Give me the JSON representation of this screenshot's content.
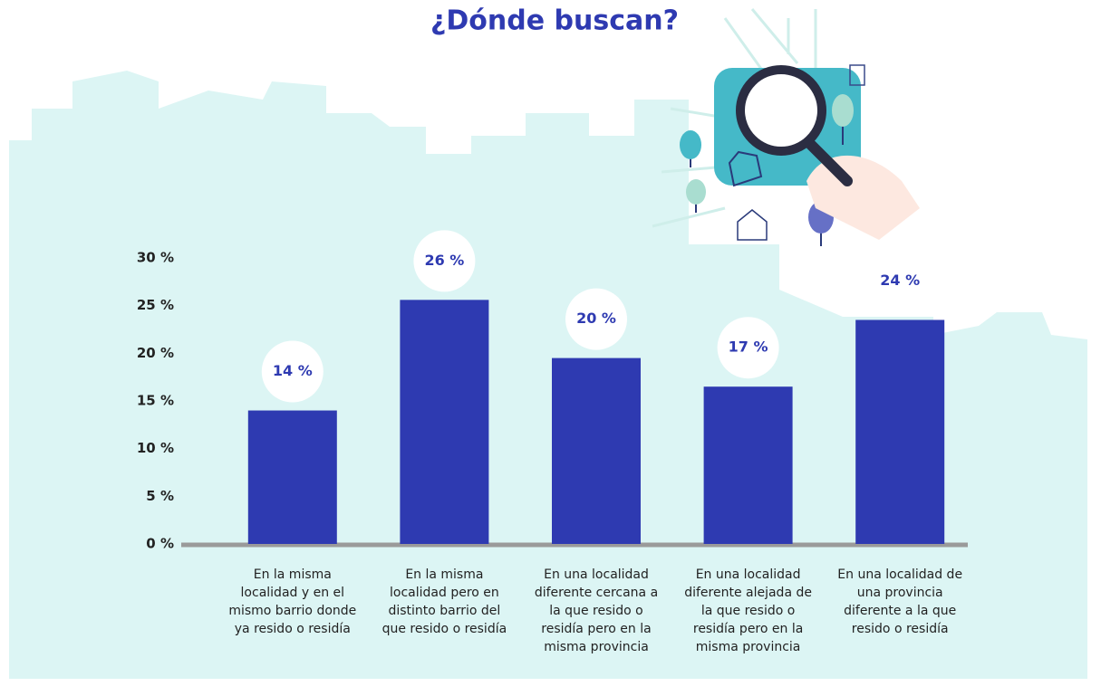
{
  "chart_data": {
    "type": "bar",
    "title": "¿Dónde buscan?",
    "categories": [
      "En la misma localidad y en el mismo barrio donde ya resido o residía",
      "En la misma localidad pero en distinto barrio del que resido o residía",
      "En una localidad diferente cercana a la que resido o residía pero en la misma provincia",
      "En una localidad diferente alejada de la que resido o residía pero en la misma provincia",
      "En una localidad de una provincia diferente a la que resido o residía"
    ],
    "values": [
      14,
      25.6,
      19.5,
      16.5,
      23.5
    ],
    "value_labels": [
      "14 %",
      "26 %",
      "20 %",
      "17 %",
      "24 %"
    ],
    "color": "#2e3ab1",
    "ylim": [
      0,
      30
    ],
    "yticks": [
      {
        "value": 0,
        "label": "0 %"
      },
      {
        "value": 5,
        "label": "5 %"
      },
      {
        "value": 10,
        "label": "10 %"
      },
      {
        "value": 15,
        "label": "15 %"
      },
      {
        "value": 20,
        "label": "20 %"
      },
      {
        "value": 25,
        "label": "25 %"
      },
      {
        "value": 30,
        "label": "30 %"
      }
    ],
    "grid": false
  }
}
